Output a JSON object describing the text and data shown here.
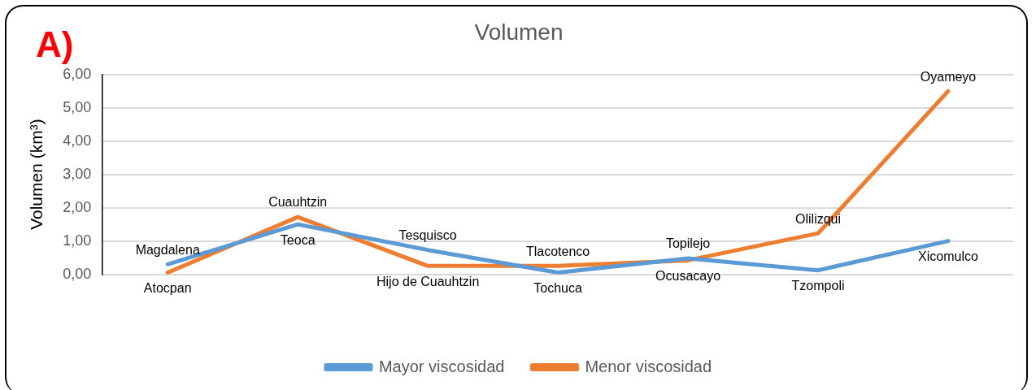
{
  "chart_data": {
    "type": "line",
    "title": "Volumen",
    "ylabel": "Volumen (km³)",
    "annotations": [
      "A)"
    ],
    "categories": [
      null,
      null,
      null,
      null,
      null,
      null,
      null
    ],
    "series": [
      {
        "name": "Mayor viscosidad",
        "color": "#5b9bd5",
        "values": [
          0.3,
          1.5,
          0.73,
          0.05,
          0.48,
          0.12,
          1.0
        ],
        "value_labels": [
          "Magdalena",
          "Teoca",
          "Tesquisco",
          "Tochuca",
          "Topilejo",
          "Tzompoli",
          "Xicomulco"
        ]
      },
      {
        "name": "Menor viscosidad",
        "color": "#ed7d31",
        "values": [
          0.05,
          1.72,
          0.25,
          0.25,
          0.42,
          1.23,
          5.5
        ],
        "value_labels": [
          "Atocpan",
          "Cuauhtzin",
          "Hijo de Cuauhtzin",
          "Tlacotenco",
          "Ocusacayo",
          "Olilizqui",
          "Oyameyo"
        ]
      }
    ],
    "ylim": [
      0,
      6
    ],
    "yticks": [
      {
        "value": 0,
        "label": "0,00"
      },
      {
        "value": 1,
        "label": "1,00"
      },
      {
        "value": 2,
        "label": "2,00"
      },
      {
        "value": 3,
        "label": "3,00"
      },
      {
        "value": 4,
        "label": "4,00"
      },
      {
        "value": 5,
        "label": "5,00"
      },
      {
        "value": 6,
        "label": "6,00"
      }
    ],
    "grid": "y",
    "legend": "bottom",
    "marker": "none",
    "line_style": "solid"
  }
}
